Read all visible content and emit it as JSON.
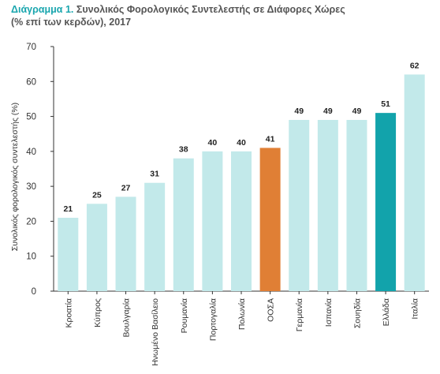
{
  "header": {
    "title_prefix": "Διάγραμμα 1.",
    "title_text": " Συνολικός Φορολογικός Συντελεστής σε Διάφορες Χώρες (% επί των κερδών), 2017"
  },
  "chart_data": {
    "type": "bar",
    "ylabel": "Συνολικός φορολογικός συντελεστής (%)",
    "xlabel": "",
    "ylim": [
      0,
      70
    ],
    "yticks": [
      0,
      10,
      20,
      30,
      40,
      50,
      60,
      70
    ],
    "grid": false,
    "categories": [
      "Κροατία",
      "Κύπρος",
      "Βουλγαρία",
      "Ηνωμένο Βασίλειο",
      "Ρουμανία",
      "Πορτογαλία",
      "Πολωνία",
      "ΟΟΣΑ",
      "Γερμανία",
      "Ισπανία",
      "Σουηδία",
      "Ελλάδα",
      "Ιταλία"
    ],
    "values": [
      21,
      25,
      27,
      31,
      38,
      40,
      40,
      41,
      49,
      49,
      49,
      51,
      62
    ],
    "colors": {
      "default": "#c2e9ea",
      "ΟΟΣΑ": "#e07f35",
      "Ελλάδα": "#12a3ab",
      "axis": "#333333"
    }
  }
}
